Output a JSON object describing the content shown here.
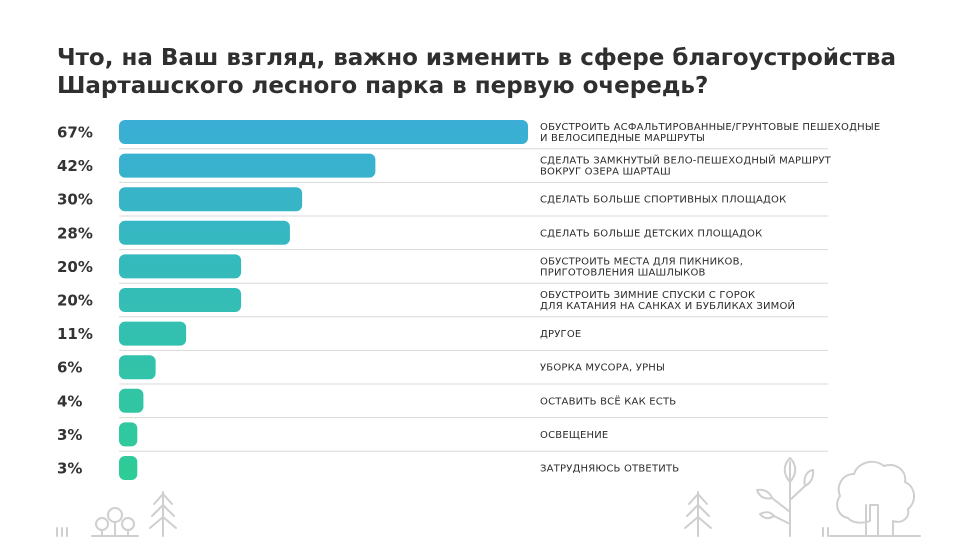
{
  "chart_data": {
    "type": "bar",
    "orientation": "horizontal",
    "title": "Что, на Ваш взгляд, важно изменить в сфере благоустройства Шарташского лесного парка в первую очередь?",
    "categories": [
      [
        "ОБУСТРОИТЬ  АСФАЛЬТИРОВАННЫЕ/ГРУНТОВЫЕ ПЕШЕХОДНЫЕ",
        "И ВЕЛОСИПЕДНЫЕ МАРШРУТЫ"
      ],
      [
        "СДЕЛАТЬ  ЗАМКНУТЫЙ ВЕЛО-ПЕШЕХОДНЫЙ МАРШРУТ",
        "ВОКРУГ ОЗЕРА ШАРТАШ"
      ],
      [
        "СДЕЛАТЬ БОЛЬШЕ СПОРТИВНЫХ ПЛОЩАДОК"
      ],
      [
        "СДЕЛАТЬ БОЛЬШЕ ДЕТСКИХ ПЛОЩАДОК"
      ],
      [
        "ОБУСТРОИТЬ МЕСТА ДЛЯ ПИКНИКОВ,",
        "ПРИГОТОВЛЕНИЯ ШАШЛЫКОВ"
      ],
      [
        "ОБУСТРОИТЬ ЗИМНИЕ СПУСКИ С ГОРОК",
        "ДЛЯ КАТАНИЯ НА САНКАХ И БУБЛИКАХ ЗИМОЙ"
      ],
      [
        "ДРУГОЕ"
      ],
      [
        "УБОРКА МУСОРА, УРНЫ"
      ],
      [
        "ОСТАВИТЬ ВСЁ КАК ЕСТЬ"
      ],
      [
        "ОСВЕЩЕНИЕ"
      ],
      [
        "ЗАТРУДНЯЮСЬ ОТВЕТИТЬ"
      ]
    ],
    "values": [
      67,
      42,
      30,
      28,
      20,
      20,
      11,
      6,
      4,
      3,
      3
    ],
    "value_labels": [
      "67%",
      "42%",
      "30%",
      "28%",
      "20%",
      "20%",
      "11%",
      "6%",
      "4%",
      "3%",
      "3%"
    ],
    "unit": "%",
    "xlim": [
      0,
      67
    ],
    "grid": false,
    "legend": "none",
    "colors": {
      "bar_top": "#3aaed6",
      "bar_bottom": "#2ecc96",
      "separator": "#d9d9d9",
      "decoration": "#cfcfcf"
    }
  }
}
